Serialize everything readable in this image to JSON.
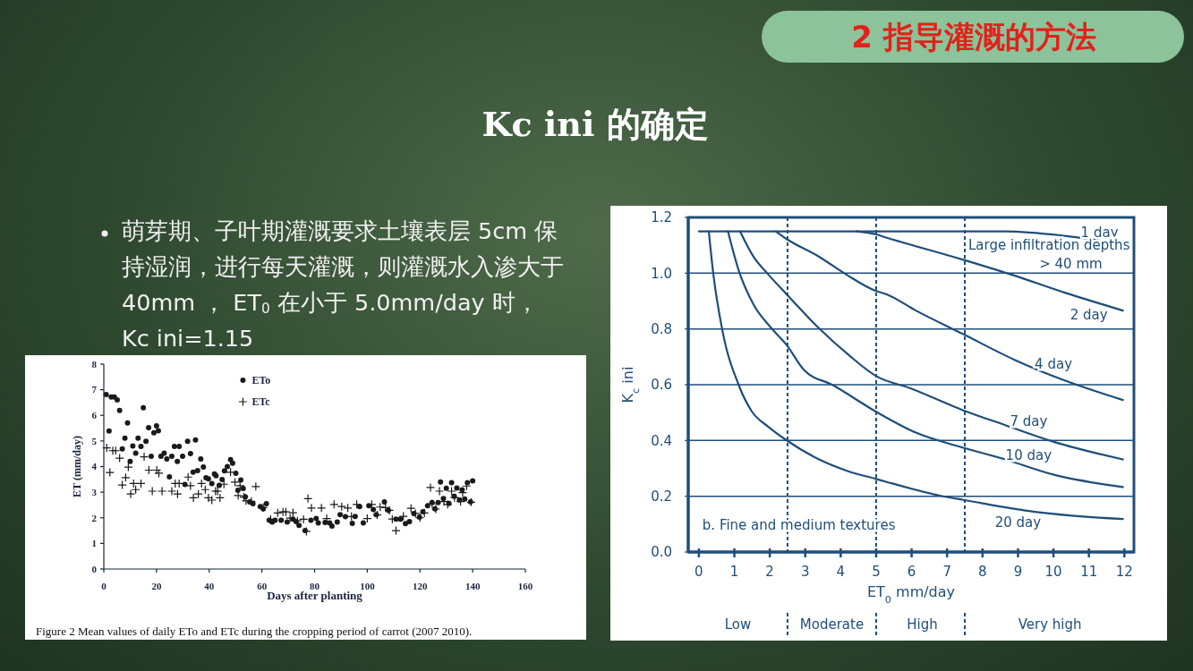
{
  "chart_data": [
    {
      "type": "other",
      "title": "Kc ini 的确定",
      "annotations": [
        "2 指导灌溉的方法",
        "萌芽期、子叶期灌溉要求土壤表层 5cm 保持湿润，进行每天灌溉，则灌溉水入渗大于 40mm ， ET$_{0}$ 在小于 5.0mm/day 时， Kc ini=1.15"
      ]
    },
    {
      "type": "scatter",
      "xlabel": "Days after planting",
      "ylabel": "ET (mm/day)",
      "xlim": [
        0,
        160
      ],
      "ylim": [
        0,
        8
      ],
      "xticks": [
        0,
        20,
        40,
        60,
        80,
        100,
        120,
        140,
        160
      ],
      "yticks": [
        0,
        1,
        2,
        3,
        4,
        5,
        6,
        7,
        8
      ],
      "legend": "top",
      "annotations": [
        "Figure 2    Mean values of daily ETo and ETc during the cropping period of carrot (2007  2010)."
      ],
      "series": [
        {
          "name": "ETo",
          "color": "#1a1a1a",
          "marker": "circle",
          "x": [
            0.9,
            2,
            2.8,
            4,
            5.1,
            6,
            7,
            8,
            9,
            10,
            11,
            12.1,
            13,
            14.1,
            15,
            16,
            17,
            18,
            19,
            20,
            20.7,
            21.7,
            22.9,
            23.9,
            24.9,
            25.8,
            26.8,
            27.9,
            28.6,
            29.9,
            30.8,
            31.8,
            32.9,
            33.9,
            34.8,
            35.6,
            36.8,
            37.8,
            38.8,
            39.7,
            41,
            42,
            42.6,
            43.8,
            44.9,
            45.8,
            46.9,
            48.1,
            48.9,
            50.1,
            50.9,
            52,
            52.9,
            53.7,
            55.4,
            56.6,
            59.4,
            60.5,
            61.7,
            62.8,
            63.9,
            65,
            67.3,
            69.6,
            71.8,
            73,
            74.1,
            76.4,
            78.6,
            80.6,
            81.4,
            84,
            85.7,
            86.6,
            88.6,
            89.7,
            91.7,
            94.3,
            95.4,
            97.1,
            98.5,
            100.6,
            102.3,
            103.4,
            106.5,
            108,
            110.9,
            112.6,
            114.5,
            116,
            117.7,
            119.8,
            121.1,
            122.9,
            124.6,
            125.7,
            126.9,
            127.8,
            128.9,
            130,
            131,
            132,
            133,
            134,
            135,
            136,
            137,
            138,
            139.2,
            140
          ],
          "values": [
            6.81,
            5.39,
            6.72,
            6.72,
            6.6,
            6.19,
            4.69,
            5.11,
            5.7,
            4.2,
            4.8,
            4.52,
            5.11,
            4.79,
            6.3,
            4.99,
            5.52,
            4.4,
            5.32,
            5.59,
            5.4,
            4.4,
            4.52,
            4.3,
            3.6,
            4.4,
            4.79,
            4.2,
            4.79,
            4.4,
            3.3,
            4.99,
            4.51,
            3.78,
            5.04,
            3.84,
            4.3,
            3.98,
            3.56,
            3.52,
            3.34,
            3.71,
            3.64,
            3.27,
            3.49,
            3.83,
            4.0,
            4.27,
            4.13,
            3.74,
            3.07,
            3.48,
            3.14,
            2.82,
            2.62,
            2.55,
            2.44,
            2.35,
            2.55,
            1.9,
            1.83,
            1.9,
            1.9,
            1.83,
            1.95,
            1.85,
            1.7,
            1.5,
            1.9,
            1.97,
            1.8,
            1.82,
            1.8,
            1.68,
            1.83,
            2.12,
            2.04,
            1.78,
            2.05,
            2.44,
            1.8,
            2.47,
            2.32,
            2.12,
            2.62,
            2.29,
            1.95,
            1.95,
            1.77,
            1.85,
            2.17,
            2.03,
            2.24,
            2.47,
            2.59,
            2.35,
            2.59,
            3.4,
            2.75,
            3.15,
            2.56,
            3.37,
            2.84,
            3.16,
            2.7,
            3.09,
            2.73,
            3.37,
            2.62,
            3.44
          ]
        },
        {
          "name": "ETc",
          "color": "#1a1a1a",
          "marker": "cross",
          "x": [
            1.1,
            2.3,
            3.4,
            4.5,
            6,
            7,
            8.3,
            9.3,
            10.2,
            11.3,
            12.1,
            14.1,
            15.3,
            17.1,
            18.4,
            20.1,
            20.9,
            22.1,
            25.8,
            27.1,
            28,
            28.6,
            32,
            32.9,
            34,
            35.9,
            37.1,
            38.5,
            39.7,
            41,
            42.4,
            43.2,
            44.1,
            45.6,
            48.1,
            49.8,
            51,
            51.7,
            53.2,
            54,
            56,
            57.7,
            60.5,
            63.3,
            66,
            68,
            69.1,
            70.7,
            71.8,
            73.5,
            75.8,
            76.9,
            77.5,
            78.8,
            82.6,
            84.6,
            87.4,
            90.3,
            92.6,
            94,
            96,
            100,
            101.7,
            103.8,
            104.9,
            106.9,
            108.4,
            109.5,
            110.9,
            113.7,
            116.6,
            118.3,
            120,
            121.7,
            124,
            124.6,
            126,
            127.4,
            129.1,
            130.5,
            132,
            133.1,
            135.4,
            136.2,
            137.7,
            139.4
          ],
          "values": [
            4.73,
            3.77,
            4.62,
            4.62,
            4.33,
            3.28,
            3.57,
            3.98,
            2.93,
            3.34,
            3.1,
            3.34,
            4.38,
            3.86,
            3.04,
            3.86,
            3.74,
            3.04,
            3.04,
            3.34,
            2.93,
            3.34,
            3.59,
            3.25,
            2.78,
            2.93,
            3.34,
            3.1,
            2.78,
            2.69,
            3.04,
            3.04,
            2.78,
            3.31,
            3.78,
            3.39,
            2.87,
            3.25,
            2.81,
            2.66,
            2.64,
            3.22,
            2.4,
            1.94,
            2.19,
            2.23,
            2.23,
            1.99,
            2.2,
            1.88,
            1.94,
            1.47,
            2.75,
            2.38,
            2.38,
            1.97,
            2.52,
            2.44,
            2.38,
            2.05,
            2.52,
            1.97,
            2.52,
            2.11,
            2.42,
            2.4,
            2.29,
            1.95,
            1.5,
            2.06,
            2.37,
            2.17,
            2.0,
            2.19,
            3.18,
            2.55,
            2.34,
            3.04,
            2.63,
            2.52,
            3.04,
            2.79,
            2.63,
            2.98,
            3.24,
            2.61
          ]
        }
      ]
    },
    {
      "type": "line",
      "xlabel": "ET$_{0}$ mm/day",
      "ylabel": "K$_{c}$ ini",
      "xlim": [
        -0.3,
        12.27
      ],
      "ylim": [
        0,
        1.2
      ],
      "xticks": [
        0,
        1,
        2,
        3,
        4,
        5,
        6,
        7,
        8,
        9,
        10,
        11,
        12
      ],
      "yticks": [
        {
          "value": 0,
          "label": "0.0"
        },
        0.2,
        0.4,
        0.6,
        0.8,
        {
          "value": 1,
          "label": "1.0"
        },
        1.2
      ],
      "grid": "y",
      "legend": false,
      "line_style": "solid",
      "annotations": [
        "Large infiltration depths",
        "> 40 mm",
        "b. Fine and medium textures",
        "Low",
        "Moderate",
        "High",
        "Very high"
      ],
      "ref_lines": [
        {
          "axis": "x",
          "value": 2.5,
          "line_style": "dashed",
          "color": "#1f4e79"
        },
        {
          "axis": "x",
          "value": 5,
          "line_style": "dashed",
          "color": "#1f4e79"
        },
        {
          "axis": "x",
          "value": 7.5,
          "line_style": "dashed",
          "color": "#1f4e79"
        }
      ],
      "series": [
        {
          "name": "1 day",
          "color": "#1f4e79",
          "x": [
            0,
            4.5,
            8.64,
            10.32,
            11.96
          ],
          "values": [
            1.15,
            1.15,
            1.15,
            1.134,
            1.104
          ]
        },
        {
          "name": "2 day",
          "color": "#1f4e79",
          "x": [
            4.44,
            5,
            5.28,
            7.46,
            8.81,
            10.32,
            11.96
          ],
          "values": [
            1.15,
            1.139,
            1.128,
            1.048,
            0.995,
            0.93,
            0.866
          ]
        },
        {
          "name": "4 day",
          "color": "#1f4e79",
          "x": [
            2.17,
            2.47,
            3.39,
            4.16,
            5,
            5.28,
            6.12,
            7.46,
            8.89,
            10.32,
            11.96
          ],
          "values": [
            1.15,
            1.123,
            1.059,
            0.995,
            0.936,
            0.925,
            0.866,
            0.781,
            0.69,
            0.615,
            0.545
          ]
        },
        {
          "name": "7 day",
          "color": "#1f4e79",
          "x": [
            1.16,
            1.54,
            1.96,
            2.47,
            3.39,
            4.23,
            5,
            5.95,
            7.46,
            8.64,
            9.99,
            11.96
          ],
          "values": [
            1.15,
            1.059,
            0.995,
            0.925,
            0.802,
            0.706,
            0.631,
            0.588,
            0.508,
            0.455,
            0.396,
            0.332
          ]
        },
        {
          "name": "10 day",
          "color": "#1f4e79",
          "x": [
            0.82,
            1.12,
            1.54,
            2.05,
            2.47,
            2.97,
            3.77,
            5,
            6.12,
            7.46,
            8.64,
            9.99,
            11.96
          ],
          "values": [
            1.15,
            1.011,
            0.888,
            0.802,
            0.743,
            0.652,
            0.599,
            0.503,
            0.428,
            0.374,
            0.332,
            0.278,
            0.233
          ]
        },
        {
          "name": "20 day",
          "color": "#1f4e79",
          "x": [
            0.28,
            0.4,
            0.66,
            1.12,
            1.5,
            1.96,
            2.47,
            3.39,
            4.23,
            5,
            5.28,
            6.96,
            7.46,
            9.48,
            11.96
          ],
          "values": [
            1.15,
            1.005,
            0.797,
            0.6,
            0.503,
            0.449,
            0.401,
            0.332,
            0.289,
            0.262,
            0.252,
            0.198,
            0.187,
            0.144,
            0.118
          ]
        }
      ]
    }
  ]
}
